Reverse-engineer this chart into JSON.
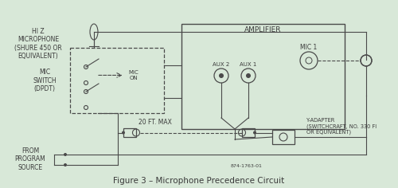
{
  "bg_color": "#d8e8d8",
  "line_color": "#4a4a4a",
  "text_color": "#3a3a3a",
  "title": "Figure 3 – Microphone Precedence Circuit",
  "title_fontsize": 7.5,
  "fig_width": 5.0,
  "fig_height": 2.36,
  "part_number": "874-1763-01",
  "amplifier_label": "AMPLIFIER",
  "mic_switch_label": "MIC\nSWITCH\n(DPDT)",
  "hi_z_label": "HI Z\nMICROPHONE\n(SHURE 450 OR\nEQUIVALENT)",
  "mic_on_label": "MIC\nON",
  "aux2_label": "AUX 2",
  "aux1_label": "AUX 1",
  "mic1_label": "MIC 1",
  "twenty_ft_label": "20 FT. MAX",
  "y_adapter_label": "Y-ADAPTER\n(SWITCHCRAFT, NO. 330 FI\nOR EQUIVALENT)",
  "from_program_label": "FROM\nPROGRAM\nSOURCE"
}
